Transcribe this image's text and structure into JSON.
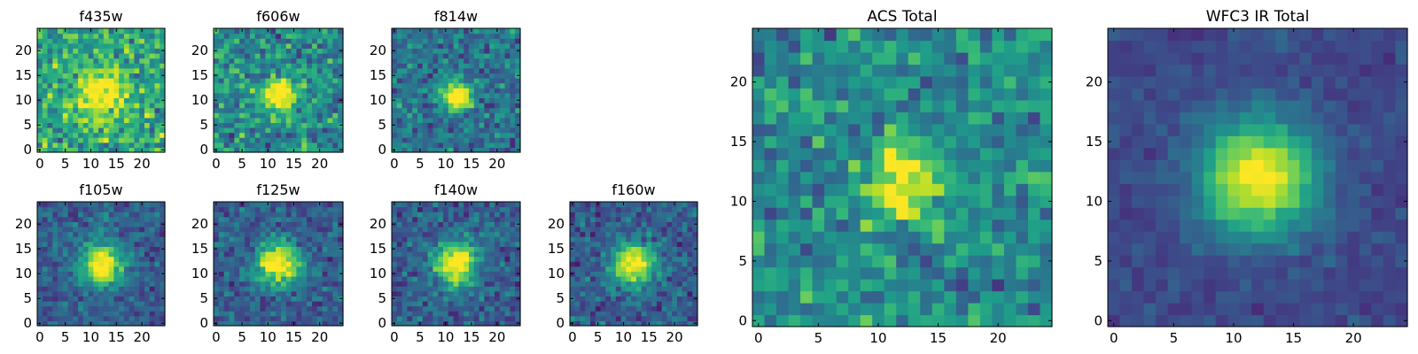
{
  "figure": {
    "panels": [
      {
        "id": "f435w",
        "title": "f435w",
        "xticks": [
          "0",
          "5",
          "10",
          "15",
          "20"
        ],
        "yticks": [
          "0",
          "5",
          "10",
          "15",
          "20"
        ]
      },
      {
        "id": "f606w",
        "title": "f606w",
        "xticks": [
          "0",
          "5",
          "10",
          "15",
          "20"
        ],
        "yticks": [
          "0",
          "5",
          "10",
          "15",
          "20"
        ]
      },
      {
        "id": "f814w",
        "title": "f814w",
        "xticks": [
          "0",
          "5",
          "10",
          "15",
          "20"
        ],
        "yticks": [
          "0",
          "5",
          "10",
          "15",
          "20"
        ]
      },
      {
        "id": "f105w",
        "title": "f105w",
        "xticks": [
          "0",
          "5",
          "10",
          "15",
          "20"
        ],
        "yticks": [
          "0",
          "5",
          "10",
          "15",
          "20"
        ]
      },
      {
        "id": "f125w",
        "title": "f125w",
        "xticks": [
          "0",
          "5",
          "10",
          "15",
          "20"
        ],
        "yticks": [
          "0",
          "5",
          "10",
          "15",
          "20"
        ]
      },
      {
        "id": "f140w",
        "title": "f140w",
        "xticks": [
          "0",
          "5",
          "10",
          "15",
          "20"
        ],
        "yticks": [
          "0",
          "5",
          "10",
          "15",
          "20"
        ]
      },
      {
        "id": "f160w",
        "title": "f160w",
        "xticks": [
          "0",
          "5",
          "10",
          "15",
          "20"
        ],
        "yticks": [
          "0",
          "5",
          "10",
          "15",
          "20"
        ]
      },
      {
        "id": "acs-total",
        "title": "ACS Total",
        "xticks": [
          "0",
          "5",
          "10",
          "15",
          "20"
        ],
        "yticks": [
          "0",
          "5",
          "10",
          "15",
          "20"
        ]
      },
      {
        "id": "wfc3-ir-total",
        "title": "WFC3 IR Total",
        "xticks": [
          "0",
          "5",
          "10",
          "15",
          "20"
        ],
        "yticks": [
          "0",
          "5",
          "10",
          "15",
          "20"
        ]
      }
    ]
  },
  "chart_data": [
    {
      "type": "heatmap",
      "title": "f435w",
      "grid_size": [
        25,
        25
      ],
      "xlim": [
        -0.5,
        24.5
      ],
      "ylim": [
        -0.5,
        24.5
      ],
      "xticks": [
        0,
        5,
        10,
        15,
        20
      ],
      "yticks": [
        0,
        5,
        10,
        15,
        20
      ],
      "colormap": "viridis",
      "source_center": [
        12,
        11
      ],
      "peak": 0.55,
      "sigma": 3.0,
      "noise": 0.42,
      "base": 0.6
    },
    {
      "type": "heatmap",
      "title": "f606w",
      "grid_size": [
        25,
        25
      ],
      "xlim": [
        -0.5,
        24.5
      ],
      "ylim": [
        -0.5,
        24.5
      ],
      "xticks": [
        0,
        5,
        10,
        15,
        20
      ],
      "yticks": [
        0,
        5,
        10,
        15,
        20
      ],
      "colormap": "viridis",
      "source_center": [
        12,
        11
      ],
      "peak": 0.7,
      "sigma": 2.3,
      "noise": 0.4,
      "base": 0.48
    },
    {
      "type": "heatmap",
      "title": "f814w",
      "grid_size": [
        25,
        25
      ],
      "xlim": [
        -0.5,
        24.5
      ],
      "ylim": [
        -0.5,
        24.5
      ],
      "xticks": [
        0,
        5,
        10,
        15,
        20
      ],
      "yticks": [
        0,
        5,
        10,
        15,
        20
      ],
      "colormap": "viridis",
      "source_center": [
        12,
        11
      ],
      "peak": 0.75,
      "sigma": 2.0,
      "noise": 0.34,
      "base": 0.38
    },
    {
      "type": "heatmap",
      "title": "f105w",
      "grid_size": [
        25,
        25
      ],
      "xlim": [
        -0.5,
        24.5
      ],
      "ylim": [
        -0.5,
        24.5
      ],
      "xticks": [
        0,
        5,
        10,
        15,
        20
      ],
      "yticks": [
        0,
        5,
        10,
        15,
        20
      ],
      "colormap": "viridis",
      "source_center": [
        12,
        12
      ],
      "peak": 0.8,
      "sigma": 2.9,
      "noise": 0.26,
      "base": 0.3
    },
    {
      "type": "heatmap",
      "title": "f125w",
      "grid_size": [
        25,
        25
      ],
      "xlim": [
        -0.5,
        24.5
      ],
      "ylim": [
        -0.5,
        24.5
      ],
      "xticks": [
        0,
        5,
        10,
        15,
        20
      ],
      "yticks": [
        0,
        5,
        10,
        15,
        20
      ],
      "colormap": "viridis",
      "source_center": [
        12,
        12
      ],
      "peak": 0.8,
      "sigma": 3.0,
      "noise": 0.28,
      "base": 0.3
    },
    {
      "type": "heatmap",
      "title": "f140w",
      "grid_size": [
        25,
        25
      ],
      "xlim": [
        -0.5,
        24.5
      ],
      "ylim": [
        -0.5,
        24.5
      ],
      "xticks": [
        0,
        5,
        10,
        15,
        20
      ],
      "yticks": [
        0,
        5,
        10,
        15,
        20
      ],
      "colormap": "viridis",
      "source_center": [
        12,
        12
      ],
      "peak": 0.8,
      "sigma": 2.9,
      "noise": 0.28,
      "base": 0.3
    },
    {
      "type": "heatmap",
      "title": "f160w",
      "grid_size": [
        25,
        25
      ],
      "xlim": [
        -0.5,
        24.5
      ],
      "ylim": [
        -0.5,
        24.5
      ],
      "xticks": [
        0,
        5,
        10,
        15,
        20
      ],
      "yticks": [
        0,
        5,
        10,
        15,
        20
      ],
      "colormap": "viridis",
      "source_center": [
        12,
        12
      ],
      "peak": 0.8,
      "sigma": 2.8,
      "noise": 0.28,
      "base": 0.3
    },
    {
      "type": "heatmap",
      "title": "ACS Total",
      "grid_size": [
        25,
        25
      ],
      "xlim": [
        -0.5,
        24.5
      ],
      "ylim": [
        -0.5,
        24.5
      ],
      "xticks": [
        0,
        5,
        10,
        15,
        20
      ],
      "yticks": [
        0,
        5,
        10,
        15,
        20
      ],
      "colormap": "viridis",
      "source_center": [
        12,
        11.5
      ],
      "peak": 0.55,
      "sigma": 2.2,
      "noise": 0.34,
      "base": 0.48
    },
    {
      "type": "heatmap",
      "title": "WFC3 IR Total",
      "grid_size": [
        25,
        25
      ],
      "xlim": [
        -0.5,
        24.5
      ],
      "ylim": [
        -0.5,
        24.5
      ],
      "xticks": [
        0,
        5,
        10,
        15,
        20
      ],
      "yticks": [
        0,
        5,
        10,
        15,
        20
      ],
      "colormap": "viridis",
      "source_center": [
        12,
        12
      ],
      "peak": 0.82,
      "sigma": 3.3,
      "noise": 0.12,
      "base": 0.22
    }
  ]
}
